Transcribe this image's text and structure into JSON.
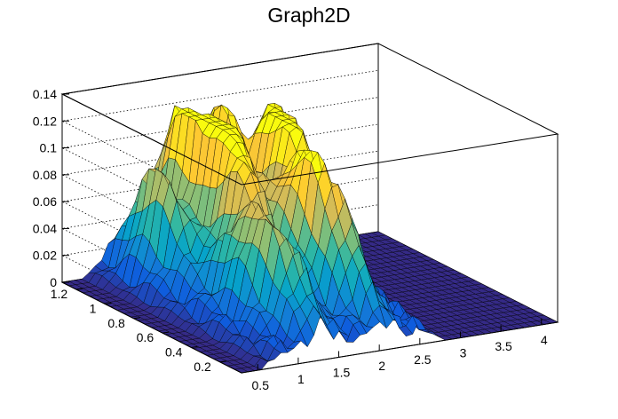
{
  "chart_data": {
    "type": "surface",
    "title": "Graph2D",
    "xlabel": "",
    "ylabel": "",
    "zlabel": "",
    "xlim": [
      0.3,
      4.2
    ],
    "ylim": [
      0.05,
      1.3
    ],
    "zlim": [
      0,
      0.14
    ],
    "x_ticks": [
      "0.5",
      "1",
      "1.5",
      "2",
      "2.5",
      "3",
      "3.5",
      "4"
    ],
    "y_ticks": [
      "0.2",
      "0.4",
      "0.6",
      "0.8",
      "1",
      "1.2"
    ],
    "z_ticks": [
      "0",
      "0.02",
      "0.04",
      "0.06",
      "0.08",
      "0.1",
      "0.12",
      "0.14"
    ],
    "grid": true,
    "palette": [
      "#352a87",
      "#0f5cdd",
      "#1481d6",
      "#06a4ca",
      "#2eb7a4",
      "#87bf77",
      "#d1bb59",
      "#fec832",
      "#f9fb0e"
    ],
    "peaks": [
      {
        "x": 1.05,
        "y": 1.05,
        "z": 0.074
      },
      {
        "x": 1.5,
        "y": 1.12,
        "z": 0.113
      },
      {
        "x": 1.45,
        "y": 0.7,
        "z": 0.073
      },
      {
        "x": 1.7,
        "y": 0.95,
        "z": 0.083
      },
      {
        "x": 2.05,
        "y": 1.2,
        "z": 0.1
      },
      {
        "x": 1.95,
        "y": 0.55,
        "z": 0.07
      },
      {
        "x": 2.25,
        "y": 0.8,
        "z": 0.085
      },
      {
        "x": 2.1,
        "y": 0.35,
        "z": 0.055
      },
      {
        "x": 1.3,
        "y": 0.3,
        "z": 0.05
      },
      {
        "x": 2.4,
        "y": 1.0,
        "z": 0.08
      },
      {
        "x": 2.6,
        "y": 1.15,
        "z": 0.075
      },
      {
        "x": 1.15,
        "y": 0.5,
        "z": 0.045
      }
    ]
  }
}
